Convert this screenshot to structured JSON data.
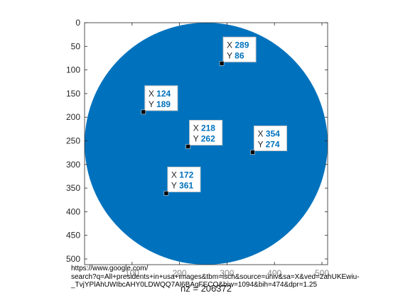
{
  "chart_data": {
    "type": "scatter",
    "title": "",
    "xlabel": "nz = 206372",
    "ylabel": "",
    "xlim": [
      0,
      512
    ],
    "ylim": [
      0,
      512
    ],
    "y_reversed": true,
    "grid": false,
    "legend": "none",
    "y_ticks": [
      0,
      50,
      100,
      150,
      200,
      250,
      300,
      350,
      400,
      450,
      500
    ],
    "x_ticks_visible": [
      "100",
      "200",
      "300",
      "400",
      "500"
    ],
    "filled_region": {
      "shape": "disk",
      "center": [
        256,
        256
      ],
      "radius": 256,
      "color": "#0072BD"
    },
    "datatips": [
      {
        "x": 289,
        "y": 86
      },
      {
        "x": 124,
        "y": 189
      },
      {
        "x": 218,
        "y": 262
      },
      {
        "x": 354,
        "y": 274
      },
      {
        "x": 172,
        "y": 361
      }
    ],
    "datatip_x_label": "X",
    "datatip_y_label": "Y"
  },
  "overlay_url_lines": [
    "https://www.google.com/",
    "search?q=All+presidents+in+usa+images&tbm=isch&source=univ&sa=X&ved=2ahUKEwiu-",
    "_TvjYPlAhUWIbcAHY0LDWQQ7Al6BAgFECQ&biw=1094&bih=474&dpr=1.25"
  ]
}
